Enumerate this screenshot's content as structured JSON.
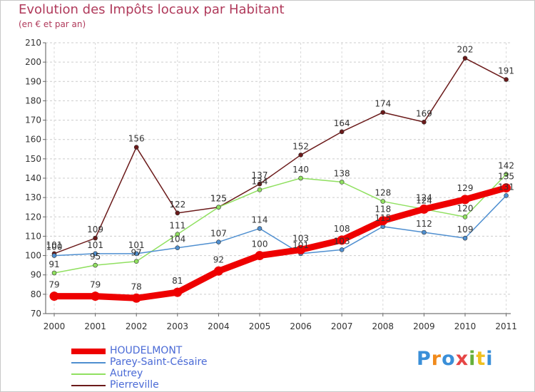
{
  "header": {
    "title": "Evolution des Impôts locaux par Habitant",
    "subtitle": "(en € et par an)"
  },
  "logo": {
    "text": "Proxiti",
    "letters": [
      "P",
      "r",
      "o",
      "x",
      "i",
      "t",
      "i"
    ],
    "colors": [
      "#3a8fd8",
      "#f08a1c",
      "#3a8fd8",
      "#e64545",
      "#66b03a",
      "#f0c020",
      "#3a8fd8"
    ]
  },
  "chart_data": {
    "type": "line",
    "title": "Evolution des Impôts locaux par Habitant",
    "subtitle": "(en € et par an)",
    "xlabel": "",
    "ylabel": "",
    "x": [
      "2000",
      "2001",
      "2002",
      "2003",
      "2004",
      "2005",
      "2006",
      "2007",
      "2008",
      "2009",
      "2010",
      "2011"
    ],
    "ylim": [
      70,
      210
    ],
    "yticks": [
      70,
      80,
      90,
      100,
      110,
      120,
      130,
      140,
      150,
      160,
      170,
      180,
      190,
      200,
      210
    ],
    "grid": "horizontal dashed",
    "legend_position": "bottom-left",
    "series": [
      {
        "name": "HOUDELMONT",
        "color": "#ee0000",
        "emphasis": true,
        "values": [
          79,
          79,
          78,
          81,
          92,
          100,
          103,
          108,
          118,
          124,
          129,
          135
        ]
      },
      {
        "name": "Parey-Saint-Césaire",
        "color": "#4f8fd0",
        "emphasis": false,
        "values": [
          100,
          101,
          101,
          104,
          107,
          114,
          101,
          103,
          115,
          112,
          109,
          131
        ]
      },
      {
        "name": "Autrey",
        "color": "#90e060",
        "emphasis": false,
        "values": [
          91,
          95,
          97,
          111,
          125,
          134,
          140,
          138,
          128,
          124,
          120,
          142
        ]
      },
      {
        "name": "Pierreville",
        "color": "#6b1a1a",
        "emphasis": false,
        "values": [
          101,
          109,
          156,
          122,
          125,
          137,
          152,
          164,
          174,
          169,
          202,
          191
        ]
      }
    ]
  }
}
